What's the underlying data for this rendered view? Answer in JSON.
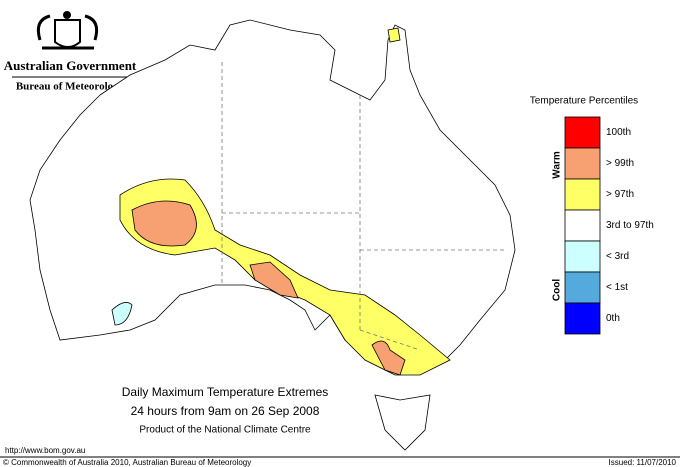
{
  "header": {
    "government": "Australian Government",
    "bureau": "Bureau of Meteorology"
  },
  "legend": {
    "title": "Temperature Percentiles",
    "groups": [
      "Warm",
      "Cool"
    ],
    "items": [
      {
        "label": "100th",
        "color": "#ff0000"
      },
      {
        "label": "> 99th",
        "color": "#f7a072"
      },
      {
        "label": "> 97th",
        "color": "#ffff66"
      },
      {
        "label": "3rd to 97th",
        "color": "#ffffff"
      },
      {
        "label": "< 3rd",
        "color": "#ccffff"
      },
      {
        "label": "< 1st",
        "color": "#55aadd"
      },
      {
        "label": "0th",
        "color": "#0000ff"
      }
    ]
  },
  "caption": {
    "title": "Daily Maximum Temperature Extremes",
    "subtitle": "24 hours from 9am on 26 Sep 2008",
    "credit": "Product of the National Climate Centre"
  },
  "footer": {
    "url": "http://www.bom.gov.au",
    "copyright": "© Commonwealth of Australia 2010, Australian Bureau of Meteorology",
    "issued": "Issued: 11/07/2010"
  }
}
